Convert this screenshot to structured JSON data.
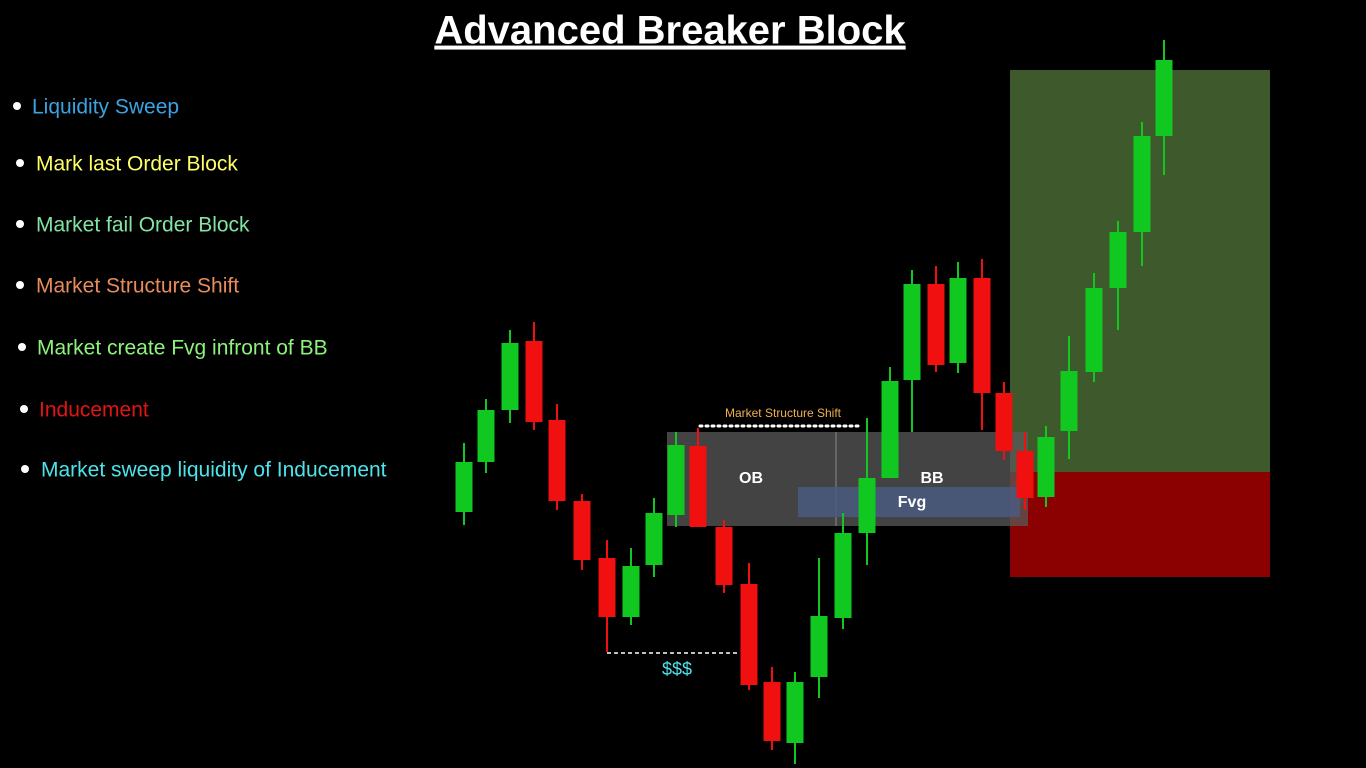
{
  "header": {
    "title": "Advanced Breaker Block"
  },
  "bullets": [
    {
      "text": "Liquidity Sweep",
      "color": "#3ba3e3"
    },
    {
      "text": "Mark last Order Block",
      "color": "#ffff66"
    },
    {
      "text": "Market fail Order Block",
      "color": "#82e3a3"
    },
    {
      "text": "Market Structure Shift",
      "color": "#e88c5c"
    },
    {
      "text": "Market create Fvg infront of BB",
      "color": "#8df27c"
    },
    {
      "text": "Inducement",
      "color": "#e31414"
    },
    {
      "text": "Market sweep liquidity of Inducement",
      "color": "#4ee3ea"
    }
  ],
  "labels": {
    "structure_shift": "Market Structure Shift",
    "order_block": "OB",
    "breaker_block": "BB",
    "fvg": "Fvg",
    "liquidity": "$$$"
  }
}
